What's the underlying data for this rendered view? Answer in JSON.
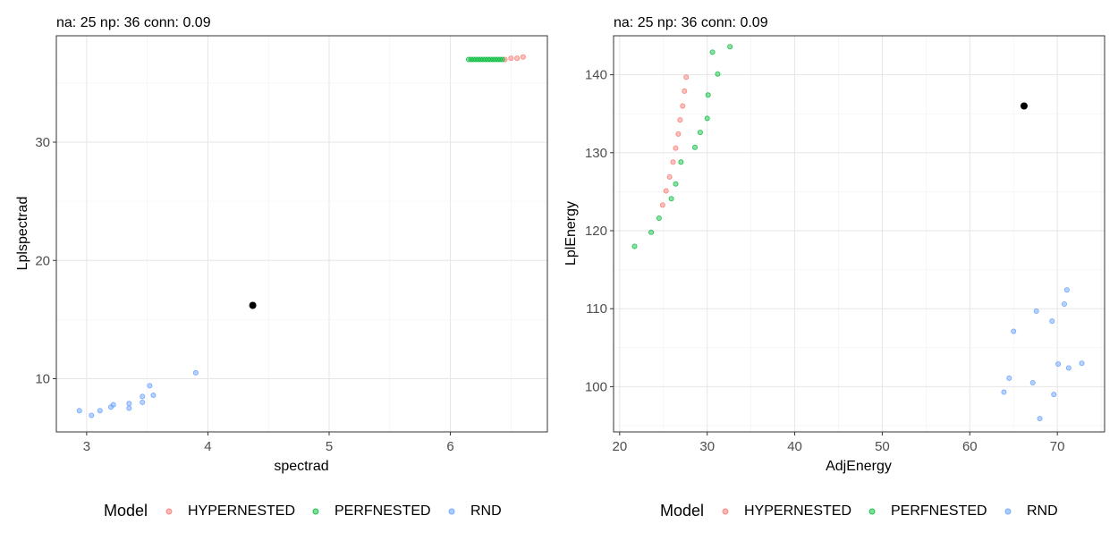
{
  "chart_data": [
    {
      "type": "scatter",
      "title": "na: 25 np: 36 conn: 0.09",
      "xlabel": "spectrad",
      "ylabel": "Lplspectrad",
      "xlim": [
        2.75,
        6.8
      ],
      "ylim": [
        5.5,
        39.0
      ],
      "xticks": [
        3,
        4,
        5,
        6
      ],
      "yticks": [
        10,
        20,
        30
      ],
      "grid": true,
      "legend_position": "bottom",
      "legend_title": "Model",
      "series": [
        {
          "name": "HYPERNESTED",
          "color": "#F8766D",
          "points": [
            [
              6.45,
              37.0
            ],
            [
              6.5,
              37.1
            ],
            [
              6.55,
              37.1
            ],
            [
              6.6,
              37.2
            ]
          ]
        },
        {
          "name": "PERFNESTED",
          "color": "#00BA38",
          "points": [
            [
              6.15,
              37.0
            ],
            [
              6.17,
              37.0
            ],
            [
              6.19,
              37.0
            ],
            [
              6.21,
              37.0
            ],
            [
              6.23,
              37.0
            ],
            [
              6.25,
              37.0
            ],
            [
              6.27,
              37.0
            ],
            [
              6.29,
              37.0
            ],
            [
              6.31,
              37.0
            ],
            [
              6.33,
              37.0
            ],
            [
              6.35,
              37.0
            ],
            [
              6.37,
              37.0
            ],
            [
              6.39,
              37.0
            ],
            [
              6.41,
              37.0
            ],
            [
              6.43,
              37.0
            ]
          ]
        },
        {
          "name": "RND",
          "color": "#619CFF",
          "points": [
            [
              2.94,
              7.3
            ],
            [
              3.04,
              6.9
            ],
            [
              3.11,
              7.3
            ],
            [
              3.2,
              7.6
            ],
            [
              3.22,
              7.8
            ],
            [
              3.35,
              7.9
            ],
            [
              3.35,
              7.5
            ],
            [
              3.46,
              8.0
            ],
            [
              3.46,
              8.5
            ],
            [
              3.52,
              9.4
            ],
            [
              3.55,
              8.6
            ],
            [
              3.9,
              10.5
            ]
          ]
        }
      ],
      "highlight_point": {
        "x": 4.37,
        "y": 16.2,
        "color": "#000000"
      }
    },
    {
      "type": "scatter",
      "title": "na: 25 np: 36 conn: 0.09",
      "xlabel": "AdjEnergy",
      "ylabel": "LplEnergy",
      "xlim": [
        19.3,
        75.4
      ],
      "ylim": [
        94.2,
        145.0
      ],
      "xticks": [
        20,
        30,
        40,
        50,
        60,
        70
      ],
      "yticks": [
        100,
        110,
        120,
        130,
        140
      ],
      "grid": true,
      "legend_position": "bottom",
      "legend_title": "Model",
      "series": [
        {
          "name": "HYPERNESTED",
          "color": "#F8766D",
          "points": [
            [
              24.9,
              123.3
            ],
            [
              25.3,
              125.1
            ],
            [
              25.7,
              126.9
            ],
            [
              26.1,
              128.8
            ],
            [
              26.4,
              130.6
            ],
            [
              26.7,
              132.4
            ],
            [
              26.9,
              134.2
            ],
            [
              27.2,
              136.0
            ],
            [
              27.4,
              137.9
            ],
            [
              27.6,
              139.7
            ]
          ]
        },
        {
          "name": "PERFNESTED",
          "color": "#00BA38",
          "points": [
            [
              21.7,
              118.0
            ],
            [
              23.6,
              119.8
            ],
            [
              24.5,
              121.6
            ],
            [
              25.9,
              124.1
            ],
            [
              26.4,
              126.0
            ],
            [
              27.0,
              128.8
            ],
            [
              28.6,
              130.7
            ],
            [
              29.2,
              132.6
            ],
            [
              30.0,
              134.4
            ],
            [
              30.1,
              137.4
            ],
            [
              30.6,
              142.9
            ],
            [
              31.2,
              140.1
            ],
            [
              32.6,
              143.6
            ]
          ]
        },
        {
          "name": "RND",
          "color": "#619CFF",
          "points": [
            [
              63.9,
              99.3
            ],
            [
              64.5,
              101.1
            ],
            [
              65.0,
              107.1
            ],
            [
              67.2,
              100.5
            ],
            [
              67.6,
              109.7
            ],
            [
              68.0,
              95.9
            ],
            [
              69.4,
              108.4
            ],
            [
              69.6,
              99.0
            ],
            [
              70.1,
              102.9
            ],
            [
              70.8,
              110.6
            ],
            [
              71.1,
              112.4
            ],
            [
              71.3,
              102.4
            ],
            [
              72.8,
              103.0
            ]
          ]
        }
      ],
      "highlight_point": {
        "x": 66.2,
        "y": 136.0,
        "color": "#000000"
      }
    }
  ]
}
